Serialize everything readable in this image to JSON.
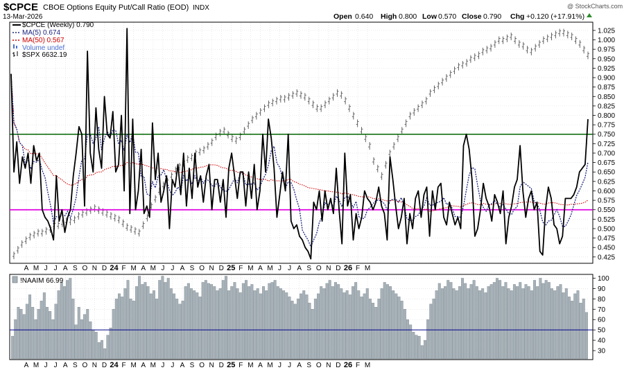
{
  "header": {
    "symbol": "$CPCE",
    "name": "CBOE Options Equity Put/Call Ratio (EOD)",
    "exchange": "INDX",
    "date": "13-Mar-2026",
    "watermark": "@ StockCharts.com",
    "quote": {
      "open_label": "Open",
      "open": "0.640",
      "high_label": "High",
      "high": "0.800",
      "low_label": "Low",
      "low": "0.570",
      "close_label": "Close",
      "close": "0.790",
      "chg_label": "Chg",
      "chg": "+0.120 (+17.91%)"
    }
  },
  "colors": {
    "cpce": "#000000",
    "ma5": "#1a237e",
    "ma50": "#cc0000",
    "volume": "#4a6fd0",
    "spx": "#555555",
    "hline_green": "#006400",
    "hline_magenta": "#e000e0",
    "bars": "#a7b1b8",
    "naaim_mid": "#00008b"
  },
  "legend": {
    "cpce": "$CPCE (Weekly) 0.790",
    "ma5": "MA(5) 0.674",
    "ma50": "MA(50) 0.567",
    "volume": "Volume undef",
    "spx": "$SPX 6632.19"
  },
  "lower_legend": "!NAAIM 66.99",
  "chart_data": [
    {
      "type": "line",
      "title": "$CPCE CBOE Options Equity Put/Call Ratio (EOD)",
      "ylim": [
        0.41,
        1.045
      ],
      "yticks": [
        "0.425",
        "0.450",
        "0.475",
        "0.500",
        "0.525",
        "0.550",
        "0.575",
        "0.600",
        "0.625",
        "0.650",
        "0.675",
        "0.700",
        "0.725",
        "0.750",
        "0.775",
        "0.800",
        "0.825",
        "0.850",
        "0.875",
        "0.900",
        "0.925",
        "0.950",
        "0.975",
        "1.000",
        "1.025"
      ],
      "x_month_labels": [
        "A",
        "M",
        "J",
        "J",
        "A",
        "S",
        "O",
        "N",
        "D",
        "24",
        "F",
        "M",
        "A",
        "M",
        "J",
        "J",
        "A",
        "S",
        "O",
        "N",
        "D",
        "25",
        "F",
        "M",
        "A",
        "M",
        "J",
        "J",
        "A",
        "S",
        "O",
        "N",
        "D",
        "26",
        "F",
        "M"
      ],
      "horizontal_lines": [
        0.75,
        0.55
      ],
      "series": [
        {
          "name": "$CPCE (Weekly)",
          "values": [
            0.91,
            0.65,
            0.73,
            0.62,
            0.69,
            0.66,
            0.7,
            0.62,
            0.72,
            0.68,
            0.7,
            0.55,
            0.53,
            0.52,
            0.5,
            0.47,
            0.64,
            0.52,
            0.55,
            0.49,
            0.53,
            0.55,
            0.64,
            0.7,
            0.77,
            0.75,
            0.56,
            0.97,
            0.7,
            0.65,
            0.82,
            0.71,
            0.66,
            0.85,
            0.75,
            0.74,
            0.81,
            0.65,
            0.67,
            0.8,
            0.6,
            1.03,
            0.54,
            0.79,
            0.55,
            0.6,
            0.71,
            0.54,
            0.56,
            0.53,
            0.78,
            0.63,
            0.7,
            0.57,
            0.6,
            0.64,
            0.5,
            0.63,
            0.61,
            0.67,
            0.59,
            0.7,
            0.56,
            0.66,
            0.58,
            0.7,
            0.61,
            0.64,
            0.57,
            0.64,
            0.67,
            0.55,
            0.63,
            0.63,
            0.57,
            0.63,
            0.53,
            0.66,
            0.7,
            0.64,
            0.58,
            0.65,
            0.65,
            0.56,
            0.65,
            0.58,
            0.67,
            0.55,
            0.6,
            0.75,
            0.65,
            0.79,
            0.74,
            0.66,
            0.53,
            0.59,
            0.65,
            0.6,
            0.75,
            0.52,
            0.5,
            0.51,
            0.48,
            0.47,
            0.45,
            0.44,
            0.42,
            0.57,
            0.55,
            0.6,
            0.52,
            0.6,
            0.55,
            0.58,
            0.54,
            0.66,
            0.55,
            0.46,
            0.7,
            0.56,
            0.59,
            0.47,
            0.54,
            0.5,
            0.53,
            0.6,
            0.58,
            0.57,
            0.55,
            0.57,
            0.61,
            0.56,
            0.54,
            0.47,
            0.69,
            0.63,
            0.56,
            0.5,
            0.53,
            0.58,
            0.46,
            0.54,
            0.5,
            0.58,
            0.6,
            0.53,
            0.59,
            0.61,
            0.48,
            0.6,
            0.55,
            0.61,
            0.62,
            0.53,
            0.51,
            0.57,
            0.54,
            0.51,
            0.53,
            0.5,
            0.72,
            0.75,
            0.71,
            0.63,
            0.48,
            0.5,
            0.55,
            0.62,
            0.58,
            0.56,
            0.52,
            0.59,
            0.57,
            0.54,
            0.6,
            0.46,
            0.53,
            0.56,
            0.61,
            0.63,
            0.72,
            0.6,
            0.53,
            0.58,
            0.6,
            0.55,
            0.57,
            0.44,
            0.43,
            0.55,
            0.61,
            0.58,
            0.51,
            0.5,
            0.46,
            0.48,
            0.58,
            0.58,
            0.58,
            0.59,
            0.61,
            0.65,
            0.66,
            0.67,
            0.79
          ]
        },
        {
          "name": "MA(5)",
          "values": []
        },
        {
          "name": "MA(50)",
          "values": []
        },
        {
          "name": "$SPX",
          "values": [
            0.43,
            0.445,
            0.46,
            0.47,
            0.48,
            0.485,
            0.49,
            0.49,
            0.495,
            0.5,
            0.51,
            0.51,
            0.515,
            0.52,
            0.52,
            0.525,
            0.535,
            0.54,
            0.545,
            0.55,
            0.555,
            0.55,
            0.545,
            0.54,
            0.535,
            0.53,
            0.525,
            0.515,
            0.505,
            0.5,
            0.495,
            0.49,
            0.51,
            0.53,
            0.56,
            0.58,
            0.6,
            0.615,
            0.625,
            0.64,
            0.655,
            0.665,
            0.675,
            0.685,
            0.69,
            0.7,
            0.705,
            0.71,
            0.72,
            0.73,
            0.745,
            0.755,
            0.76,
            0.75,
            0.74,
            0.735,
            0.745,
            0.76,
            0.775,
            0.79,
            0.8,
            0.81,
            0.82,
            0.83,
            0.835,
            0.84,
            0.845,
            0.845,
            0.85,
            0.855,
            0.86,
            0.855,
            0.85,
            0.84,
            0.83,
            0.82,
            0.82,
            0.83,
            0.84,
            0.85,
            0.86,
            0.855,
            0.84,
            0.82,
            0.8,
            0.78,
            0.76,
            0.74,
            0.72,
            0.68,
            0.66,
            0.64,
            0.67,
            0.7,
            0.72,
            0.74,
            0.76,
            0.78,
            0.8,
            0.81,
            0.82,
            0.83,
            0.84,
            0.86,
            0.87,
            0.88,
            0.89,
            0.9,
            0.91,
            0.92,
            0.93,
            0.935,
            0.94,
            0.95,
            0.955,
            0.96,
            0.97,
            0.975,
            0.98,
            0.99,
            1.0,
            1.0,
            1.005,
            1.01,
            1.0,
            0.99,
            0.985,
            0.975,
            0.97,
            0.98,
            0.99,
            1.0,
            1.005,
            1.01,
            1.015,
            1.02,
            1.02,
            1.015,
            1.01,
            1.0,
            0.99,
            0.975,
            0.96
          ]
        }
      ]
    },
    {
      "type": "bar",
      "title": "!NAAIM",
      "ylim": [
        22,
        103
      ],
      "yticks": [
        "30",
        "40",
        "50",
        "60",
        "70",
        "80",
        "90",
        "100"
      ],
      "x_month_labels": [
        "A",
        "M",
        "J",
        "J",
        "A",
        "S",
        "O",
        "N",
        "D",
        "24",
        "F",
        "M",
        "A",
        "M",
        "J",
        "J",
        "A",
        "S",
        "O",
        "N",
        "D",
        "25",
        "F",
        "M",
        "A",
        "M",
        "J",
        "J",
        "A",
        "S",
        "O",
        "N",
        "D",
        "26",
        "F",
        "M"
      ],
      "horizontal_lines": [
        50
      ],
      "series": [
        {
          "name": "!NAAIM",
          "values": [
            44,
            60,
            72,
            70,
            65,
            75,
            84,
            72,
            60,
            70,
            78,
            86,
            72,
            68,
            60,
            75,
            88,
            96,
            92,
            98,
            100,
            80,
            55,
            72,
            60,
            65,
            70,
            58,
            50,
            48,
            38,
            40,
            32,
            45,
            52,
            70,
            80,
            85,
            82,
            90,
            98,
            80,
            78,
            92,
            102,
            94,
            96,
            92,
            85,
            88,
            80,
            98,
            102,
            96,
            100,
            90,
            85,
            80,
            75,
            78,
            92,
            95,
            90,
            88,
            86,
            82,
            96,
            98,
            95,
            94,
            92,
            88,
            90,
            98,
            102,
            88,
            92,
            96,
            90,
            86,
            95,
            98,
            92,
            94,
            88,
            90,
            85,
            92,
            88,
            95,
            96,
            98,
            92,
            90,
            88,
            86,
            82,
            78,
            75,
            80,
            85,
            88,
            84,
            76,
            70,
            80,
            85,
            92,
            90,
            95,
            98,
            92,
            96,
            94,
            90,
            86,
            88,
            84,
            92,
            96,
            88,
            82,
            85,
            90,
            80,
            76,
            72,
            80,
            90,
            96,
            94,
            92,
            88,
            85,
            82,
            78,
            70,
            60,
            55,
            48,
            45,
            44,
            35,
            40,
            60,
            75,
            80,
            88,
            95,
            90,
            92,
            98,
            96,
            90,
            88,
            92,
            100,
            95,
            90,
            94,
            98,
            92,
            88,
            90,
            86,
            92,
            94,
            96,
            100,
            98,
            92,
            96,
            90,
            88,
            94,
            92,
            96,
            90,
            94,
            92,
            88,
            98,
            92,
            100,
            95,
            98,
            96,
            90,
            88,
            92,
            94,
            86,
            90,
            82,
            78,
            85,
            88,
            76,
            80,
            67
          ]
        }
      ]
    }
  ]
}
